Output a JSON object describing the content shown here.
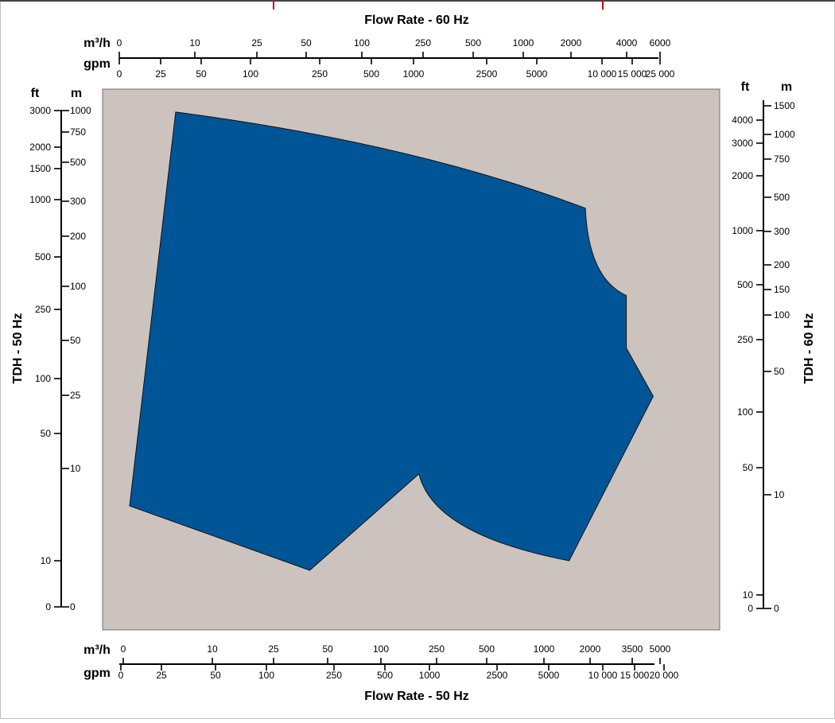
{
  "chart_data": {
    "type": "area",
    "title_top": "Flow Rate - 60 Hz",
    "title_bottom": "Flow Rate - 50 Hz",
    "ylabel_left": "TDH - 50 Hz",
    "ylabel_right": "TDH - 60 Hz",
    "grid": false,
    "colors": {
      "plot_background": "#ccc3be",
      "region_fill": "#005596",
      "frame_border": "#d0021b"
    },
    "units": {
      "top_m3h": "m³/h",
      "top_gpm": "gpm",
      "bottom_m3h": "m³/h",
      "bottom_gpm": "gpm",
      "left_ft": "ft",
      "left_m": "m",
      "right_ft": "ft",
      "right_m": "m"
    },
    "top_m3h_ticks": [
      "0",
      "10",
      "25",
      "50",
      "100",
      "250",
      "500",
      "1000",
      "2000",
      "4000",
      "6000"
    ],
    "top_gpm_ticks": [
      "0",
      "25",
      "50",
      "100",
      "250",
      "500",
      "1000",
      "2500",
      "5000",
      "10 000",
      "15 000",
      "25 000"
    ],
    "bottom_m3h_ticks": [
      "0",
      "10",
      "25",
      "50",
      "100",
      "250",
      "500",
      "1000",
      "2000",
      "3500",
      "5000"
    ],
    "bottom_gpm_ticks": [
      "0",
      "25",
      "50",
      "100",
      "250",
      "500",
      "1000",
      "2500",
      "5000",
      "10 000",
      "15 000",
      "20 000"
    ],
    "left_ft_ticks": [
      "3000",
      "2000",
      "1500",
      "1000",
      "500",
      "250",
      "100",
      "50",
      "10",
      "0"
    ],
    "left_m_ticks": [
      "1000",
      "750",
      "500",
      "300",
      "200",
      "100",
      "50",
      "25",
      "10",
      "0"
    ],
    "right_ft_ticks": [
      "4000",
      "3000",
      "2000",
      "1000",
      "500",
      "250",
      "100",
      "50",
      "10",
      "0"
    ],
    "right_m_ticks": [
      "1500",
      "1000",
      "750",
      "500",
      "300",
      "200",
      "150",
      "100",
      "50",
      "10",
      "0"
    ],
    "region_boundary_50hz_gpm_ft": [
      [
        30,
        2950
      ],
      [
        750,
        2400
      ],
      [
        3000,
        1600
      ],
      [
        8000,
        900
      ],
      [
        13500,
        300
      ],
      [
        13500,
        150
      ],
      [
        18000,
        80
      ],
      [
        6500,
        10
      ],
      [
        1500,
        20
      ],
      [
        850,
        30
      ],
      [
        180,
        8
      ],
      [
        2,
        20
      ]
    ]
  }
}
